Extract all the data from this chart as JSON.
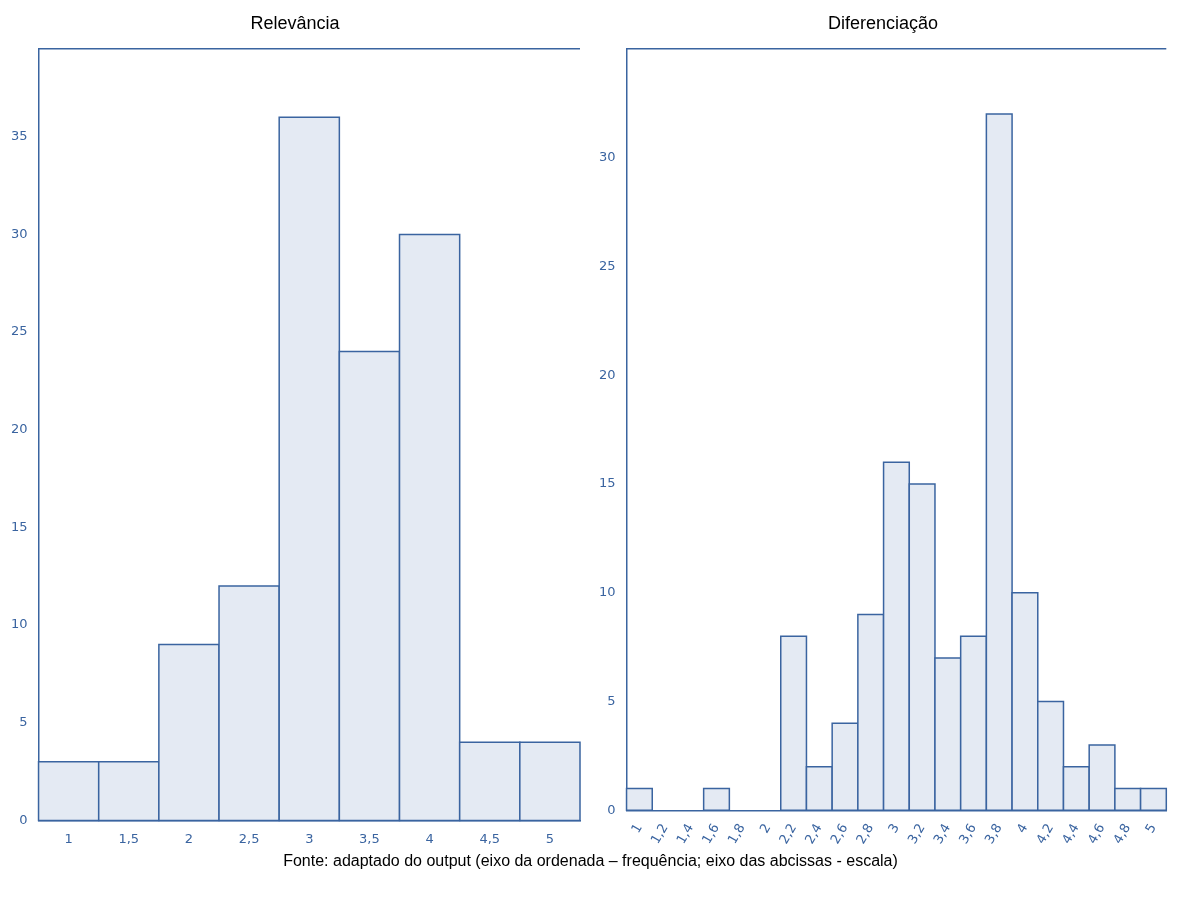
{
  "chart_data": [
    {
      "type": "histogram",
      "title": "Relevância",
      "color": "#e4eaf3",
      "bins": [
        0.75,
        1.25,
        1.75,
        2.25,
        2.75,
        3.25,
        3.75,
        4.25,
        4.75,
        5.25
      ],
      "values": [
        3,
        3,
        9,
        12,
        36,
        24,
        30,
        4,
        4
      ],
      "xlim": [
        0.75,
        5.25
      ],
      "xticks": [
        1,
        {
          "value": 1.5,
          "label": "1,5"
        },
        2,
        {
          "value": 2.5,
          "label": "2,5"
        },
        3,
        {
          "value": 3.5,
          "label": "3,5"
        },
        4,
        {
          "value": 4.5,
          "label": "4,5"
        },
        5
      ],
      "ylim": [
        0,
        39.5
      ],
      "yticks": [
        0,
        5,
        10,
        15,
        20,
        25,
        30,
        35
      ],
      "annotations": [
        "Fonte: adaptado do output (eixo da ordenada – frequência; eixo das abcissas - escala)"
      ]
    },
    {
      "type": "histogram",
      "title": "Diferenciação",
      "color": "#e4eaf3",
      "bins": [
        0.9,
        1.1,
        1.3,
        1.5,
        1.7,
        1.9,
        2.1,
        2.3,
        2.5,
        2.7,
        2.9,
        3.1,
        3.3,
        3.5,
        3.7,
        3.9,
        4.1,
        4.3,
        4.5,
        4.7,
        4.9,
        5.1
      ],
      "values": [
        1,
        0,
        0,
        1,
        0,
        0,
        8,
        2,
        4,
        9,
        16,
        15,
        7,
        8,
        32,
        10,
        5,
        2,
        3,
        1,
        1
      ],
      "xlim": [
        0.9,
        5.1
      ],
      "xticks": [
        1,
        {
          "value": 1.2,
          "label": "1,2"
        },
        {
          "value": 1.4,
          "label": "1,4"
        },
        {
          "value": 1.6,
          "label": "1,6"
        },
        {
          "value": 1.8,
          "label": "1,8"
        },
        2,
        {
          "value": 2.2,
          "label": "2,2"
        },
        {
          "value": 2.4,
          "label": "2,4"
        },
        {
          "value": 2.6,
          "label": "2,6"
        },
        {
          "value": 2.8,
          "label": "2,8"
        },
        3,
        {
          "value": 3.2,
          "label": "3,2"
        },
        {
          "value": 3.4,
          "label": "3,4"
        },
        {
          "value": 3.6,
          "label": "3,6"
        },
        {
          "value": 3.8,
          "label": "3,8"
        },
        4,
        {
          "value": 4.2,
          "label": "4,2"
        },
        {
          "value": 4.4,
          "label": "4,4"
        },
        {
          "value": 4.6,
          "label": "4,6"
        },
        {
          "value": 4.8,
          "label": "4,8"
        },
        5
      ],
      "ylim": [
        0,
        35
      ],
      "yticks": [
        0,
        5,
        10,
        15,
        20,
        25,
        30
      ]
    }
  ]
}
